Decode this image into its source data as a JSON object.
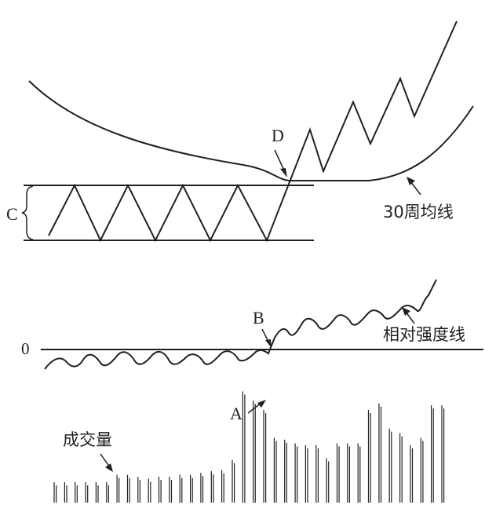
{
  "labels": {
    "point_a": "A",
    "point_b": "B",
    "point_c": "C",
    "point_d": "D",
    "zero": "0",
    "ma30": "30周均线",
    "rs_line": "相对强度线",
    "volume": "成交量"
  },
  "colors": {
    "ink": "#231f20",
    "background": "#ffffff"
  },
  "volume_bars": [
    22,
    22,
    22,
    22,
    22,
    22,
    30,
    30,
    28,
    26,
    28,
    28,
    30,
    30,
    32,
    34,
    35,
    46,
    120,
    110,
    100,
    70,
    68,
    64,
    62,
    62,
    48,
    64,
    64,
    64,
    100,
    107,
    80,
    75,
    62,
    70,
    105,
    105
  ]
}
